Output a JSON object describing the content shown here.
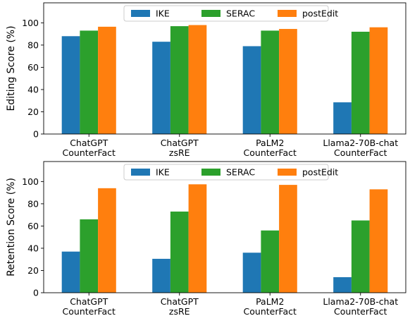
{
  "chart_data": [
    {
      "type": "bar",
      "title": "",
      "xlabel": "",
      "ylabel": "Editing Score (%)",
      "ylim": [
        0,
        118
      ],
      "yticks": [
        0,
        20,
        40,
        60,
        80,
        100
      ],
      "grid": false,
      "legend_position": "top-center",
      "categories": [
        [
          "ChatGPT",
          "CounterFact"
        ],
        [
          "ChatGPT",
          "zsRE"
        ],
        [
          "PaLM2",
          "CounterFact"
        ],
        [
          "Llama2-70B-chat",
          "CounterFact"
        ]
      ],
      "series": [
        {
          "name": "IKE",
          "color": "#1f77b4",
          "values": [
            88,
            83,
            79,
            28.5
          ]
        },
        {
          "name": "SERAC",
          "color": "#2ca02c",
          "values": [
            93,
            97,
            93,
            92
          ]
        },
        {
          "name": "postEdit",
          "color": "#ff7f0e",
          "values": [
            96.5,
            98,
            94.5,
            96
          ]
        }
      ]
    },
    {
      "type": "bar",
      "title": "",
      "xlabel": "",
      "ylabel": "Retention Score (%)",
      "ylim": [
        0,
        118
      ],
      "yticks": [
        0,
        20,
        40,
        60,
        80,
        100
      ],
      "grid": false,
      "legend_position": "top-center",
      "categories": [
        [
          "ChatGPT",
          "CounterFact"
        ],
        [
          "ChatGPT",
          "zsRE"
        ],
        [
          "PaLM2",
          "CounterFact"
        ],
        [
          "Llama2-70B-chat",
          "CounterFact"
        ]
      ],
      "series": [
        {
          "name": "IKE",
          "color": "#1f77b4",
          "values": [
            37,
            30.5,
            36,
            14
          ]
        },
        {
          "name": "SERAC",
          "color": "#2ca02c",
          "values": [
            66,
            73,
            56,
            65
          ]
        },
        {
          "name": "postEdit",
          "color": "#ff7f0e",
          "values": [
            94,
            97.5,
            97,
            93
          ]
        }
      ]
    }
  ]
}
